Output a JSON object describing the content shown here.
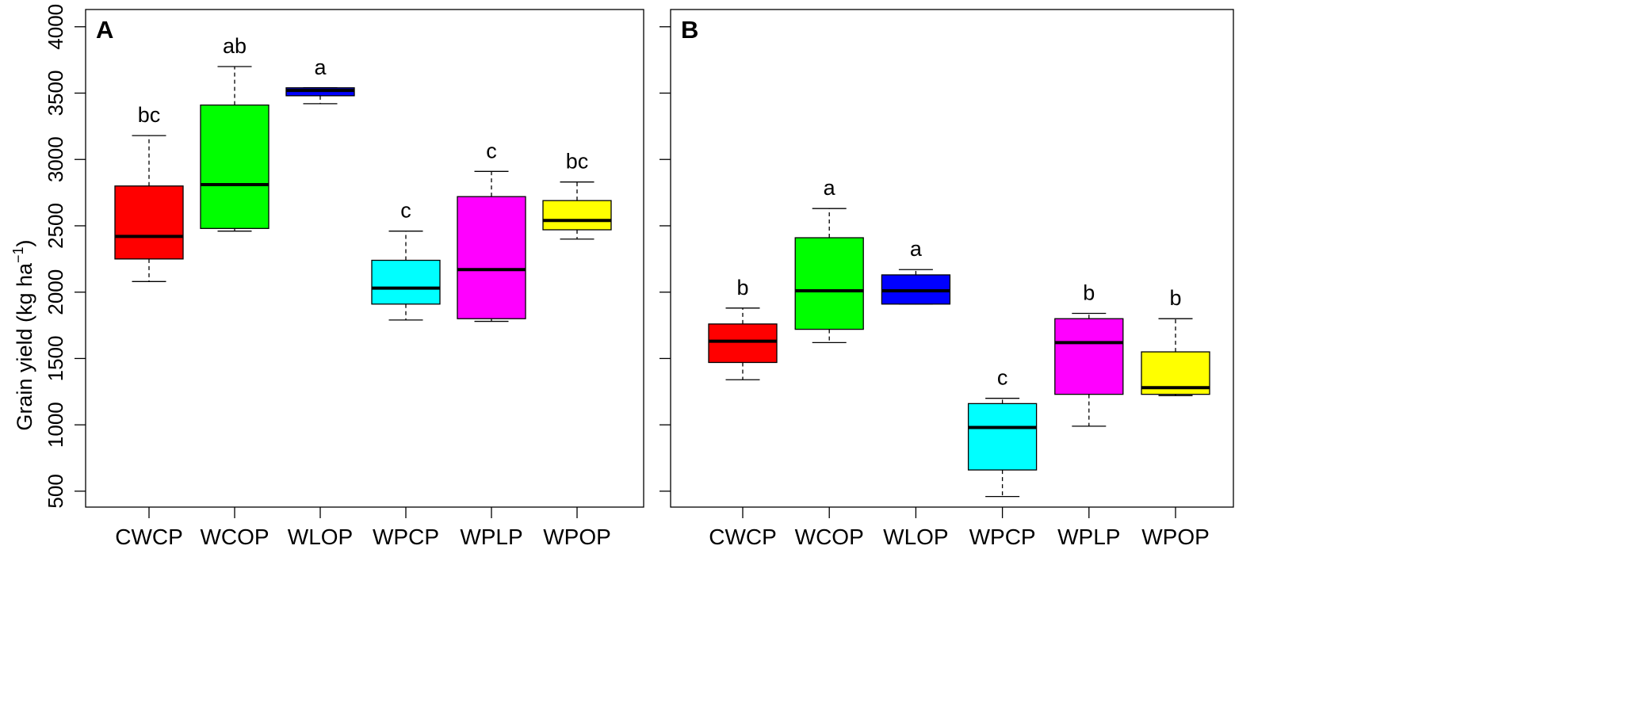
{
  "y_axis_label_parts": [
    "Grain yield (kg ha",
    "−1",
    ")"
  ],
  "chart_data": [
    {
      "type": "boxplot",
      "panel_label": "A",
      "categories": [
        "CWCP",
        "WCOP",
        "WLOP",
        "WPCP",
        "WPLP",
        "WPOP"
      ],
      "colors": [
        "#ff0000",
        "#00ff00",
        "#0000ff",
        "#00ffff",
        "#ff00ff",
        "#ffff00"
      ],
      "boxes": [
        {
          "min": 2080,
          "q1": 2250,
          "median": 2420,
          "q3": 2800,
          "max": 3180,
          "letter": "bc"
        },
        {
          "min": 2460,
          "q1": 2480,
          "median": 2810,
          "q3": 3410,
          "max": 3700,
          "letter": "ab"
        },
        {
          "min": 3420,
          "q1": 3480,
          "median": 3520,
          "q3": 3540,
          "max": 3540,
          "letter": "a"
        },
        {
          "min": 1790,
          "q1": 1910,
          "median": 2030,
          "q3": 2240,
          "max": 2460,
          "letter": "c"
        },
        {
          "min": 1780,
          "q1": 1800,
          "median": 2170,
          "q3": 2720,
          "max": 2910,
          "letter": "c"
        },
        {
          "min": 2400,
          "q1": 2470,
          "median": 2540,
          "q3": 2690,
          "max": 2830,
          "letter": "bc"
        }
      ],
      "ylim": [
        380,
        4130
      ],
      "yticks": [
        500,
        1000,
        1500,
        2000,
        2500,
        3000,
        3500,
        4000
      ],
      "xlabel": "",
      "ylabel": "Grain yield (kg ha−1)"
    },
    {
      "type": "boxplot",
      "panel_label": "B",
      "categories": [
        "CWCP",
        "WCOP",
        "WLOP",
        "WPCP",
        "WPLP",
        "WPOP"
      ],
      "colors": [
        "#ff0000",
        "#00ff00",
        "#0000ff",
        "#00ffff",
        "#ff00ff",
        "#ffff00"
      ],
      "boxes": [
        {
          "min": 1340,
          "q1": 1470,
          "median": 1630,
          "q3": 1760,
          "max": 1880,
          "letter": "b"
        },
        {
          "min": 1620,
          "q1": 1720,
          "median": 2010,
          "q3": 2410,
          "max": 2630,
          "letter": "a"
        },
        {
          "min": 1910,
          "q1": 1910,
          "median": 2010,
          "q3": 2130,
          "max": 2170,
          "letter": "a"
        },
        {
          "min": 460,
          "q1": 660,
          "median": 980,
          "q3": 1160,
          "max": 1200,
          "letter": "c"
        },
        {
          "min": 990,
          "q1": 1230,
          "median": 1620,
          "q3": 1800,
          "max": 1840,
          "letter": "b"
        },
        {
          "min": 1220,
          "q1": 1230,
          "median": 1280,
          "q3": 1550,
          "max": 1800,
          "letter": "b"
        }
      ],
      "ylim": [
        380,
        4130
      ],
      "yticks": [
        500,
        1000,
        1500,
        2000,
        2500,
        3000,
        3500,
        4000
      ],
      "xlabel": "",
      "ylabel": ""
    }
  ]
}
